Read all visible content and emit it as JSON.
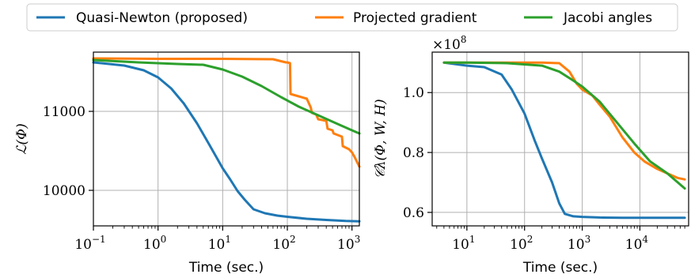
{
  "legend": {
    "placement": "top-center",
    "items": [
      {
        "label": "Quasi-Newton (proposed)",
        "color": "#1f77b4"
      },
      {
        "label": "Projected gradient",
        "color": "#ff7f0e"
      },
      {
        "label": "Jacobi angles",
        "color": "#2ca02c"
      }
    ]
  },
  "chart_data": [
    {
      "type": "line",
      "title": "",
      "xlabel": "Time (sec.)",
      "ylabel": "ℒ(Φ)",
      "xscale": "log",
      "xlim": [
        0.1,
        1300
      ],
      "ylim": [
        9550,
        11750
      ],
      "grid": true,
      "x_ticks": [
        {
          "value": 0.1,
          "base": "10",
          "exp": "−1"
        },
        {
          "value": 1,
          "base": "10",
          "exp": "0"
        },
        {
          "value": 10,
          "base": "10",
          "exp": "1"
        },
        {
          "value": 100,
          "base": "10",
          "exp": "2"
        },
        {
          "value": 1000,
          "base": "10",
          "exp": "3"
        }
      ],
      "y_ticks": [
        {
          "value": 10000,
          "label": "10000"
        },
        {
          "value": 11000,
          "label": "11000"
        }
      ],
      "series": [
        {
          "name": "Quasi-Newton (proposed)",
          "color": "#1f77b4",
          "x": [
            0.1,
            0.3,
            0.6,
            1.0,
            1.6,
            2.5,
            4,
            6,
            8,
            10,
            13,
            17,
            22,
            30,
            45,
            70,
            100,
            200,
            400,
            800,
            1300
          ],
          "y": [
            11620,
            11580,
            11520,
            11430,
            11290,
            11100,
            10850,
            10600,
            10420,
            10280,
            10140,
            9990,
            9880,
            9760,
            9710,
            9680,
            9665,
            9640,
            9625,
            9612,
            9608
          ]
        },
        {
          "name": "Projected gradient",
          "color": "#ff7f0e",
          "x": [
            0.1,
            1,
            10,
            60,
            95,
            100,
            110,
            112,
            200,
            230,
            240,
            280,
            300,
            400,
            420,
            500,
            520,
            700,
            720,
            900,
            1000,
            1100,
            1300
          ],
          "y": [
            11670,
            11665,
            11665,
            11660,
            11620,
            11620,
            11610,
            11220,
            11160,
            11050,
            10980,
            10960,
            10900,
            10880,
            10780,
            10760,
            10720,
            10680,
            10560,
            10520,
            10480,
            10420,
            10300
          ]
        },
        {
          "name": "Jacobi angles",
          "color": "#2ca02c",
          "x": [
            0.1,
            0.5,
            1,
            2,
            5,
            10,
            20,
            40,
            80,
            150,
            300,
            600,
            1000,
            1300
          ],
          "y": [
            11650,
            11620,
            11610,
            11600,
            11590,
            11530,
            11440,
            11320,
            11180,
            11060,
            10950,
            10840,
            10760,
            10720
          ]
        }
      ]
    },
    {
      "type": "line",
      "title": "",
      "xlabel": "Time (sec.)",
      "ylabel": "𝒞λ(Φ, W, H)",
      "y_multiplier": {
        "base": "×10",
        "exp": "8"
      },
      "xscale": "log",
      "xlim": [
        2.5,
        70000
      ],
      "ylim": [
        0.555,
        1.135
      ],
      "grid": true,
      "x_ticks": [
        {
          "value": 10,
          "base": "10",
          "exp": "1"
        },
        {
          "value": 100,
          "base": "10",
          "exp": "2"
        },
        {
          "value": 1000,
          "base": "10",
          "exp": "3"
        },
        {
          "value": 10000,
          "base": "10",
          "exp": "4"
        }
      ],
      "y_ticks": [
        {
          "value": 0.6,
          "label": "0.6"
        },
        {
          "value": 0.8,
          "label": "0.8"
        },
        {
          "value": 1.0,
          "label": "1.0"
        }
      ],
      "series": [
        {
          "name": "Quasi-Newton (proposed)",
          "color": "#1f77b4",
          "x": [
            4,
            10,
            20,
            40,
            60,
            100,
            150,
            200,
            300,
            400,
            500,
            700,
            1000,
            2000,
            5000,
            20000,
            60000
          ],
          "y": [
            1.1,
            1.09,
            1.085,
            1.06,
            1.01,
            0.93,
            0.84,
            0.78,
            0.7,
            0.63,
            0.595,
            0.587,
            0.585,
            0.583,
            0.582,
            0.582,
            0.582
          ]
        },
        {
          "name": "Projected gradient",
          "color": "#ff7f0e",
          "x": [
            4,
            10,
            50,
            200,
            400,
            600,
            800,
            1000,
            1500,
            2000,
            3000,
            5000,
            8000,
            12000,
            20000,
            30000,
            45000,
            60000
          ],
          "y": [
            1.1,
            1.1,
            1.1,
            1.1,
            1.098,
            1.07,
            1.03,
            1.01,
            0.99,
            0.96,
            0.92,
            0.85,
            0.8,
            0.77,
            0.745,
            0.73,
            0.715,
            0.71
          ]
        },
        {
          "name": "Jacobi angles",
          "color": "#2ca02c",
          "x": [
            4,
            10,
            50,
            200,
            400,
            700,
            1000,
            2000,
            4000,
            8000,
            15000,
            30000,
            60000
          ],
          "y": [
            1.1,
            1.1,
            1.098,
            1.09,
            1.07,
            1.04,
            1.02,
            0.97,
            0.9,
            0.83,
            0.77,
            0.73,
            0.68
          ]
        }
      ]
    }
  ]
}
